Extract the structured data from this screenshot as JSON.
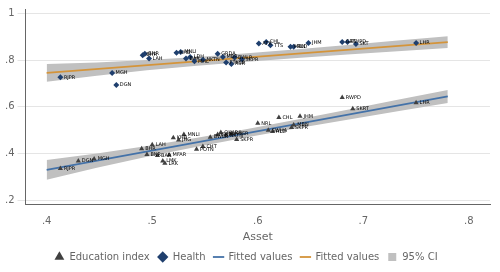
{
  "chart_data": {
    "type": "scatter",
    "xlabel": "Asset",
    "xlim": [
      0.38,
      0.82
    ],
    "ylim": [
      0.18,
      1.02
    ],
    "xticks": [
      {
        "value": 0.4,
        "label": ".4"
      },
      {
        "value": 0.5,
        "label": ".5"
      },
      {
        "value": 0.6,
        "label": ".6"
      },
      {
        "value": 0.7,
        "label": ".7"
      },
      {
        "value": 0.8,
        "label": ".8"
      }
    ],
    "yticks": [
      {
        "value": 0.2,
        "label": ".2"
      },
      {
        "value": 0.4,
        "label": ".4"
      },
      {
        "value": 0.6,
        "label": ".6"
      },
      {
        "value": 0.8,
        "label": ".8"
      },
      1
    ],
    "grid": "y",
    "legend": "bottom",
    "series": [
      {
        "name": "95% CI",
        "type": "band",
        "color": "#c0c0c0",
        "bands": [
          {
            "x": [
              0.4,
              0.4475,
              0.495,
              0.5425,
              0.59,
              0.6375,
              0.685,
              0.7325,
              0.78
            ],
            "lower": [
              0.708,
              0.7341640625,
              0.7568125,
              0.7765546875,
              0.794,
              0.8097578125,
              0.8244375,
              0.8386484375,
              0.853
            ],
            "upper": [
              0.784,
              0.7908359375,
              0.8011875,
              0.8144453125,
              0.83,
              0.8472421875,
              0.8655625,
              0.8843515625,
              0.903
            ]
          },
          {
            "x": [
              0.4,
              0.4475,
              0.495,
              0.5425,
              0.59,
              0.6375,
              0.685,
              0.7325,
              0.78
            ],
            "lower": [
              0.288,
              0.338859375,
              0.385625,
              0.428953125,
              0.4695,
              0.507921875,
              0.544875,
              0.581015625,
              0.617
            ],
            "upper": [
              0.372,
              0.399890625,
              0.431875,
              0.467296875,
              0.5055,
              0.545828125,
              0.587625,
              0.630234375,
              0.673
            ]
          }
        ]
      },
      {
        "name": "Fitted values",
        "type": "line",
        "color": "#4472a8",
        "x": [
          0.4,
          0.78
        ],
        "values": [
          0.33,
          0.645
        ]
      },
      {
        "name": "Education index",
        "type": "scatter",
        "color": "#404040",
        "marker": "triangle",
        "x": [
          0.413,
          0.43,
          0.445,
          0.49,
          0.495,
          0.5,
          0.505,
          0.51,
          0.512,
          0.516,
          0.52,
          0.525,
          0.53,
          0.542,
          0.548,
          0.555,
          0.562,
          0.565,
          0.57,
          0.575,
          0.58,
          0.6,
          0.61,
          0.614,
          0.62,
          0.632,
          0.634,
          0.64,
          0.68,
          0.69,
          0.75
        ],
        "values": [
          0.336,
          0.368,
          0.376,
          0.42,
          0.396,
          0.438,
          0.392,
          0.368,
          0.358,
          0.394,
          0.468,
          0.458,
          0.482,
          0.418,
          0.43,
          0.47,
          0.482,
          0.49,
          0.478,
          0.486,
          0.46,
          0.53,
          0.5,
          0.494,
          0.554,
          0.512,
          0.522,
          0.56,
          0.64,
          0.592,
          0.618
        ],
        "labels": [
          "RJPR",
          "DGN",
          "MGH",
          "BHR",
          "BNR",
          "LAH",
          "BAR",
          "LMK",
          "LRK",
          "MFAR",
          "KHB",
          "JHG",
          "MNLI",
          "POTN",
          "CHT",
          "BWLR",
          "GRDA",
          "OKARA",
          "NKTN",
          "KHSR",
          "SKPR",
          "NRL",
          "SWHA",
          "RLD",
          "CHL",
          "SKPR",
          "MBN",
          "JHM",
          "RWPD",
          "SKRT",
          "LHR"
        ]
      },
      {
        "name": "Fitted values",
        "type": "line",
        "color": "#d4943a",
        "x": [
          0.4,
          0.78
        ],
        "values": [
          0.746,
          0.878
        ]
      },
      {
        "name": "Health",
        "type": "scatter",
        "color": "#1f3f6e",
        "marker": "diamond",
        "x": [
          0.413,
          0.462,
          0.466,
          0.491,
          0.493,
          0.497,
          0.523,
          0.527,
          0.532,
          0.536,
          0.54,
          0.548,
          0.562,
          0.567,
          0.57,
          0.575,
          0.578,
          0.585,
          0.601,
          0.608,
          0.612,
          0.631,
          0.634,
          0.648,
          0.68,
          0.685,
          0.693,
          0.75
        ],
        "values": [
          0.727,
          0.745,
          0.694,
          0.822,
          0.828,
          0.808,
          0.832,
          0.836,
          0.808,
          0.814,
          0.796,
          0.802,
          0.828,
          0.814,
          0.79,
          0.784,
          0.812,
          0.804,
          0.872,
          0.878,
          0.864,
          0.858,
          0.858,
          0.874,
          0.878,
          0.878,
          0.87,
          0.874
        ],
        "labels": [
          "RJPR",
          "MGH",
          "DGN",
          "BHR",
          "BNR",
          "LAH",
          "KHB",
          "MNLI",
          "BAR",
          "LDH",
          "MHL",
          "NKTN",
          "GRDA",
          "MBR",
          "FTKSR",
          "RSR",
          "BWLR",
          "SKPR",
          "ATK",
          "CHL",
          "TTS",
          "MBN",
          "RLD",
          "JHM",
          "GRT",
          "RWPD",
          "SKT",
          "LHR"
        ]
      }
    ]
  }
}
